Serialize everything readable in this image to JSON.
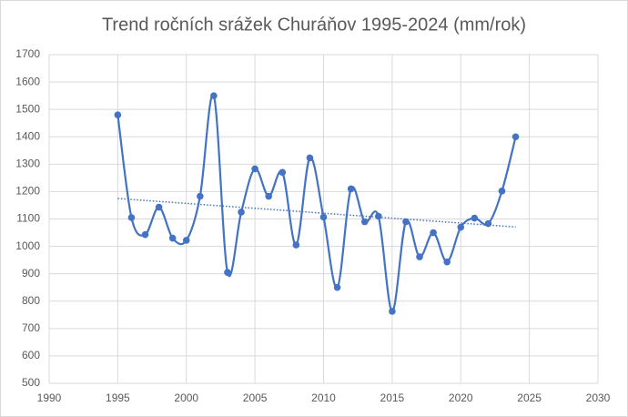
{
  "chart_data": {
    "type": "scatter",
    "title": "Trend ročních srážek Churáňov 1995-2024 (mm/rok)",
    "x": [
      1995,
      1996,
      1997,
      1998,
      1999,
      2000,
      2001,
      2002,
      2003,
      2004,
      2005,
      2006,
      2007,
      2008,
      2009,
      2010,
      2011,
      2012,
      2013,
      2014,
      2015,
      2016,
      2017,
      2018,
      2019,
      2020,
      2021,
      2022,
      2023,
      2024
    ],
    "values": [
      1480,
      1105,
      1043,
      1143,
      1030,
      1022,
      1183,
      1550,
      905,
      1125,
      1283,
      1183,
      1270,
      1005,
      1323,
      1107,
      850,
      1210,
      1090,
      1110,
      763,
      1090,
      962,
      1050,
      943,
      1070,
      1103,
      1083,
      1202,
      1400
    ],
    "color": "#4472c4",
    "smooth": true,
    "trendline": true,
    "xlim": [
      1990,
      2030
    ],
    "xticks": [
      1990,
      1995,
      2000,
      2005,
      2010,
      2015,
      2020,
      2025,
      2030
    ],
    "ylim": [
      500,
      1700
    ],
    "yticks": [
      500,
      600,
      700,
      800,
      900,
      1000,
      1100,
      1200,
      1300,
      1400,
      1500,
      1600,
      1700
    ],
    "grid": true
  }
}
